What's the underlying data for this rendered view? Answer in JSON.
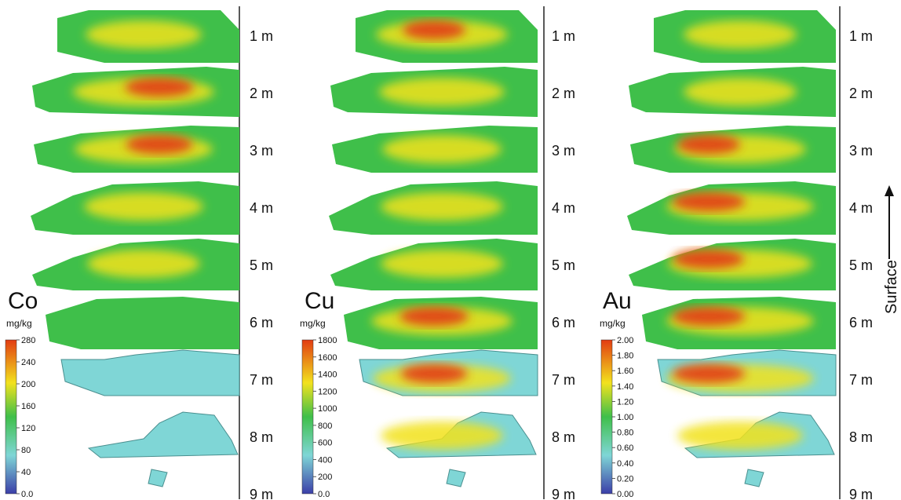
{
  "depth_labels": [
    "1 m",
    "2 m",
    "3 m",
    "4 m",
    "5 m",
    "6 m",
    "7 m",
    "8 m",
    "9 m"
  ],
  "panels": [
    {
      "element": "Co",
      "unit": "mg/kg",
      "ticks": [
        "280",
        "240",
        "200",
        "160",
        "120",
        "80",
        "40",
        "0.0"
      ],
      "intensity": [
        0.35,
        0.75,
        0.7,
        0.4,
        0.3,
        0.15,
        0.12,
        0.1,
        0.05
      ]
    },
    {
      "element": "Cu",
      "unit": "mg/kg",
      "ticks": [
        "1800",
        "1600",
        "1400",
        "1200",
        "1000",
        "800",
        "600",
        "400",
        "200",
        "0.0"
      ],
      "intensity": [
        0.6,
        0.5,
        0.4,
        0.45,
        0.45,
        0.75,
        0.7,
        0.45,
        0.1
      ]
    },
    {
      "element": "Au",
      "unit": "mg/kg",
      "ticks": [
        "2.00",
        "1.80",
        "1.60",
        "1.40",
        "1.20",
        "1.00",
        "0.80",
        "0.60",
        "0.40",
        "0.20",
        "0.00"
      ],
      "intensity": [
        0.3,
        0.3,
        0.6,
        0.85,
        0.8,
        0.85,
        0.85,
        0.5,
        0.1
      ]
    }
  ],
  "axis_label": "Surface",
  "colors": {
    "low": "#3b3ea8",
    "cyan": "#7fd6d6",
    "green": "#3fbf4a",
    "yellow": "#f2e21e",
    "high": "#e23c12"
  }
}
